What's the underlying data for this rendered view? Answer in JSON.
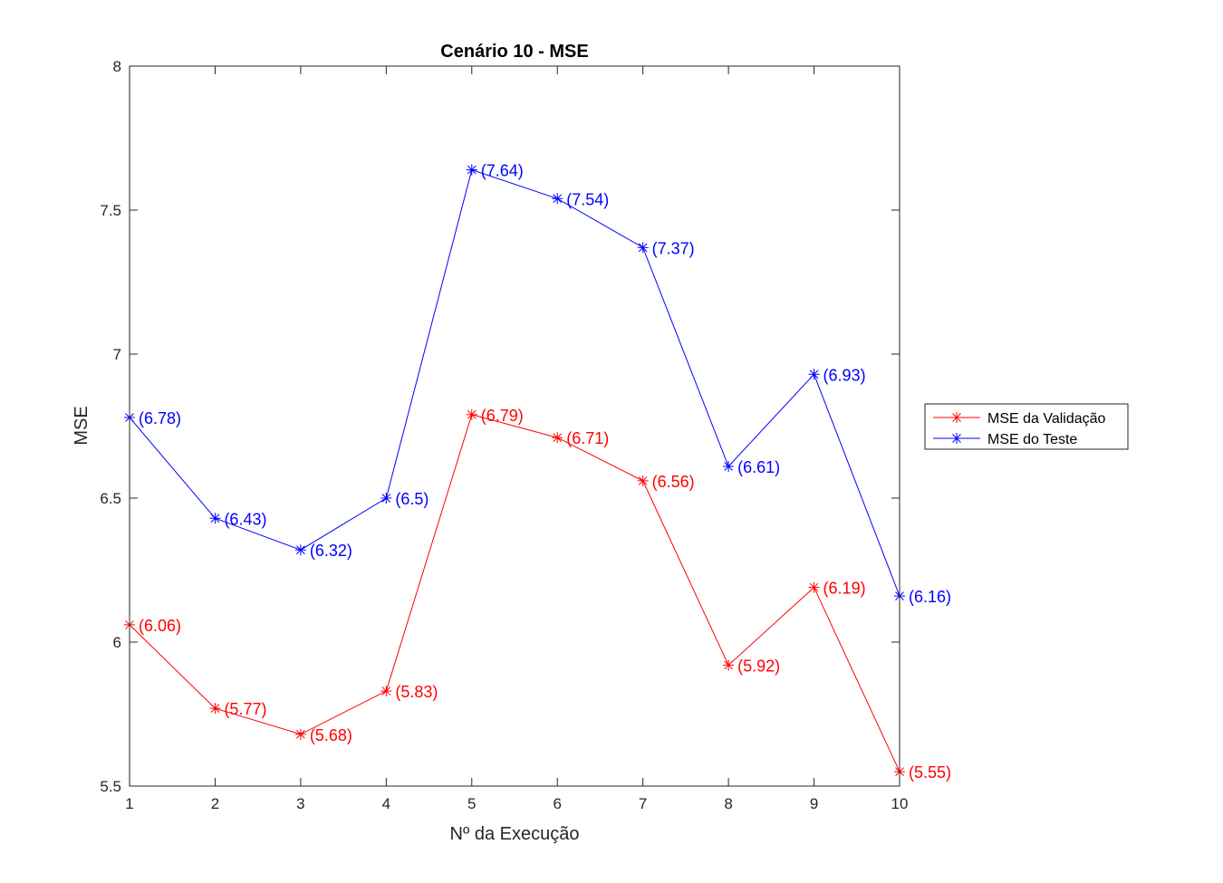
{
  "chart_data": {
    "type": "line",
    "title": "Cenário 10 - MSE",
    "xlabel": "Nº da Execução",
    "ylabel": "MSE",
    "x": [
      1,
      2,
      3,
      4,
      5,
      6,
      7,
      8,
      9,
      10
    ],
    "xlim": [
      1,
      10
    ],
    "ylim": [
      5.5,
      8
    ],
    "xticks": [
      "1",
      "2",
      "3",
      "4",
      "5",
      "6",
      "7",
      "8",
      "9",
      "10"
    ],
    "yticks": [
      "5.5",
      "6",
      "6.5",
      "7",
      "7.5",
      "8"
    ],
    "grid": false,
    "legend_position": "outside right",
    "marker": "asterisk",
    "series": [
      {
        "name": "MSE da Validação",
        "color": "#ff0000",
        "values": [
          6.06,
          5.77,
          5.68,
          5.83,
          6.79,
          6.71,
          6.56,
          5.92,
          6.19,
          5.55
        ],
        "labels": [
          "(6.06)",
          "(5.77)",
          "(5.68)",
          "(5.83)",
          "(6.79)",
          "(6.71)",
          "(6.56)",
          "(5.92)",
          "(6.19)",
          "(5.55)"
        ]
      },
      {
        "name": "MSE do Teste",
        "color": "#0000ff",
        "values": [
          6.78,
          6.43,
          6.32,
          6.5,
          7.64,
          7.54,
          7.37,
          6.61,
          6.93,
          6.16
        ],
        "labels": [
          "(6.78)",
          "(6.43)",
          "(6.32)",
          "(6.5)",
          "(7.64)",
          "(7.54)",
          "(7.37)",
          "(6.61)",
          "(6.93)",
          "(6.16)"
        ]
      }
    ]
  }
}
